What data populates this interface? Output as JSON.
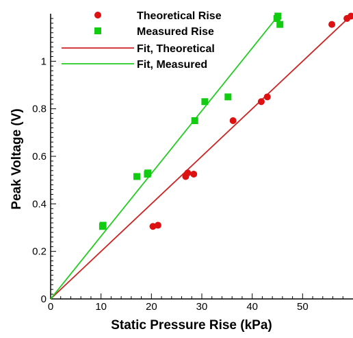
{
  "chart_data": {
    "type": "scatter",
    "title": "",
    "xlabel": "Static Pressure Rise (kPa)",
    "ylabel": "Peak Voltage (V)",
    "xlim": [
      0,
      60
    ],
    "ylim": [
      0,
      1.2
    ],
    "x_ticks": [
      0,
      10,
      20,
      30,
      40,
      50
    ],
    "y_ticks": [
      0,
      0.2,
      0.4,
      0.6,
      0.8,
      1
    ],
    "x_tick_labels": [
      "0",
      "10",
      "20",
      "30",
      "40",
      "50"
    ],
    "y_tick_labels": [
      "0",
      "0.2",
      "0.4",
      "0.6",
      "0.8",
      "1"
    ],
    "grid": false,
    "legend_position": "top-left",
    "series": [
      {
        "name": "Theoretical Rise",
        "kind": "points",
        "marker": "circle",
        "color": "#dd1111",
        "points": [
          [
            20.3,
            0.305
          ],
          [
            21.3,
            0.31
          ],
          [
            26.8,
            0.515
          ],
          [
            27.2,
            0.53
          ],
          [
            28.4,
            0.525
          ],
          [
            36.2,
            0.75
          ],
          [
            41.8,
            0.83
          ],
          [
            43.0,
            0.85
          ],
          [
            55.8,
            1.155
          ],
          [
            58.8,
            1.18
          ],
          [
            59.6,
            1.19
          ]
        ]
      },
      {
        "name": "Measured Rise",
        "kind": "points",
        "marker": "square",
        "color": "#11cc11",
        "points": [
          [
            10.3,
            0.305
          ],
          [
            10.4,
            0.31
          ],
          [
            17.1,
            0.515
          ],
          [
            19.2,
            0.525
          ],
          [
            19.3,
            0.53
          ],
          [
            28.6,
            0.75
          ],
          [
            30.6,
            0.83
          ],
          [
            35.2,
            0.85
          ],
          [
            44.9,
            1.18
          ],
          [
            45.1,
            1.19
          ],
          [
            45.5,
            1.155
          ]
        ]
      },
      {
        "name": "Fit, Theoretical",
        "kind": "line",
        "color": "#cc2222",
        "points": [
          [
            0,
            0
          ],
          [
            60,
            1.2
          ]
        ]
      },
      {
        "name": "Fit, Measured",
        "kind": "line",
        "color": "#22cc22",
        "points": [
          [
            0,
            0
          ],
          [
            45.1,
            1.19
          ]
        ]
      }
    ]
  }
}
